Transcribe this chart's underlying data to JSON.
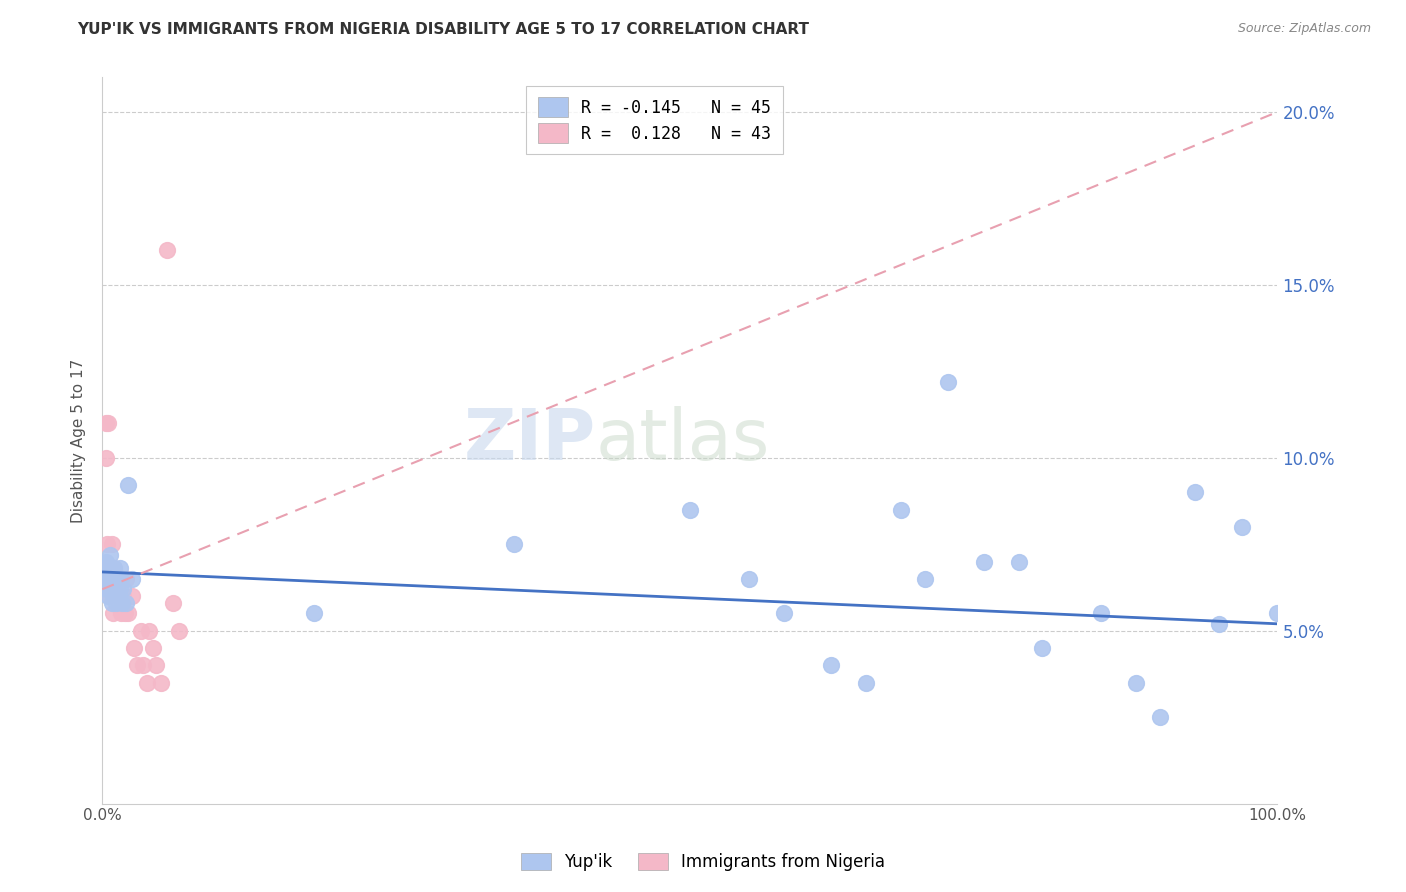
{
  "title": "YUP'IK VS IMMIGRANTS FROM NIGERIA DISABILITY AGE 5 TO 17 CORRELATION CHART",
  "source": "Source: ZipAtlas.com",
  "ylabel": "Disability Age 5 to 17",
  "series1_label": "Yup'ik",
  "series2_label": "Immigrants from Nigeria",
  "series1_color": "#aec6ef",
  "series2_color": "#f4b8c8",
  "series1_line_color": "#4472c4",
  "series2_line_color": "#e8a0b0",
  "legend_r1": "R = -0.145",
  "legend_n1": "N = 45",
  "legend_r2": "R =  0.128",
  "legend_n2": "N = 43",
  "watermark_left": "ZIP",
  "watermark_right": "atlas",
  "grid_color": "#cccccc",
  "background_color": "#ffffff",
  "xlim": [
    0.0,
    1.0
  ],
  "ylim": [
    0.0,
    0.21
  ],
  "yticks": [
    0.05,
    0.1,
    0.15,
    0.2
  ],
  "ytick_labels": [
    "5.0%",
    "10.0%",
    "15.0%",
    "20.0%"
  ],
  "yup_ik_x": [
    0.001,
    0.002,
    0.003,
    0.004,
    0.005,
    0.005,
    0.006,
    0.007,
    0.008,
    0.008,
    0.009,
    0.01,
    0.01,
    0.011,
    0.012,
    0.013,
    0.014,
    0.015,
    0.015,
    0.016,
    0.017,
    0.018,
    0.02,
    0.022,
    0.025,
    0.18,
    0.35,
    0.5,
    0.55,
    0.58,
    0.62,
    0.65,
    0.68,
    0.7,
    0.72,
    0.75,
    0.78,
    0.8,
    0.85,
    0.88,
    0.9,
    0.93,
    0.95,
    0.97,
    1.0
  ],
  "yup_ik_y": [
    0.068,
    0.065,
    0.07,
    0.062,
    0.065,
    0.06,
    0.068,
    0.072,
    0.058,
    0.062,
    0.065,
    0.06,
    0.068,
    0.065,
    0.058,
    0.065,
    0.06,
    0.068,
    0.062,
    0.065,
    0.058,
    0.062,
    0.058,
    0.092,
    0.065,
    0.055,
    0.075,
    0.085,
    0.065,
    0.055,
    0.04,
    0.035,
    0.085,
    0.065,
    0.122,
    0.07,
    0.07,
    0.045,
    0.055,
    0.035,
    0.025,
    0.09,
    0.052,
    0.08,
    0.055
  ],
  "nigeria_x": [
    0.001,
    0.002,
    0.003,
    0.003,
    0.004,
    0.004,
    0.005,
    0.005,
    0.006,
    0.006,
    0.007,
    0.007,
    0.008,
    0.008,
    0.009,
    0.009,
    0.01,
    0.01,
    0.011,
    0.012,
    0.013,
    0.013,
    0.015,
    0.015,
    0.016,
    0.017,
    0.018,
    0.019,
    0.02,
    0.022,
    0.025,
    0.027,
    0.03,
    0.033,
    0.035,
    0.038,
    0.04,
    0.043,
    0.046,
    0.05,
    0.055,
    0.06,
    0.065
  ],
  "nigeria_y": [
    0.065,
    0.068,
    0.11,
    0.1,
    0.065,
    0.075,
    0.11,
    0.065,
    0.068,
    0.065,
    0.062,
    0.06,
    0.065,
    0.075,
    0.065,
    0.055,
    0.068,
    0.065,
    0.065,
    0.065,
    0.06,
    0.065,
    0.06,
    0.065,
    0.055,
    0.058,
    0.06,
    0.055,
    0.065,
    0.055,
    0.06,
    0.045,
    0.04,
    0.05,
    0.04,
    0.035,
    0.05,
    0.045,
    0.04,
    0.035,
    0.16,
    0.058,
    0.05
  ],
  "yup_line_x0": 0.0,
  "yup_line_x1": 1.0,
  "yup_line_y0": 0.067,
  "yup_line_y1": 0.052,
  "nig_line_x0": 0.0,
  "nig_line_x1": 1.0,
  "nig_line_y0": 0.062,
  "nig_line_y1": 0.2
}
